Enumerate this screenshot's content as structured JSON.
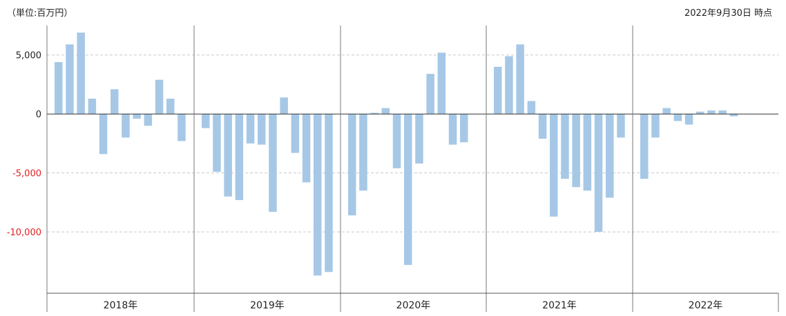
{
  "header": {
    "unit": "（単位:百万円）",
    "as_of": "2022年9月30日 時点"
  },
  "colors": {
    "bar": "#a6c8e6",
    "positive_tick": "#222222",
    "negative_tick": "#e02020",
    "grid": "#c8c8c8",
    "axis": "#555555"
  },
  "chart_data": {
    "type": "bar",
    "title": "",
    "xlabel": "",
    "ylabel": "",
    "ylim": [
      -15200,
      7500
    ],
    "yticks": [
      5000,
      0,
      -5000,
      -10000
    ],
    "ytick_labels": [
      "5,000",
      "0",
      "-5,000",
      "-10,000"
    ],
    "grid": true,
    "groups": [
      "2018年",
      "2019年",
      "2020年",
      "2021年",
      "2022年"
    ],
    "series": [
      {
        "values": [
          [
            4400,
            5900,
            6900,
            1300,
            -3400,
            2100,
            -2000,
            -400,
            -1000,
            2900,
            1300,
            -2300
          ],
          [
            -1200,
            -4900,
            -7000,
            -7300,
            -2500,
            -2600,
            -8300,
            1400,
            -3300,
            -5800,
            -13700,
            -13400
          ],
          [
            -8600,
            -6500,
            100,
            500,
            -4600,
            -12800,
            -4200,
            3400,
            5200,
            -2600,
            -2400
          ],
          [
            4000,
            4900,
            5900,
            1100,
            -2100,
            -8700,
            -5500,
            -6200,
            -6500,
            -10000,
            -7100,
            -2000
          ],
          [
            -5500,
            -2000,
            500,
            -600,
            -900,
            200,
            300,
            300,
            -200
          ]
        ]
      }
    ]
  }
}
